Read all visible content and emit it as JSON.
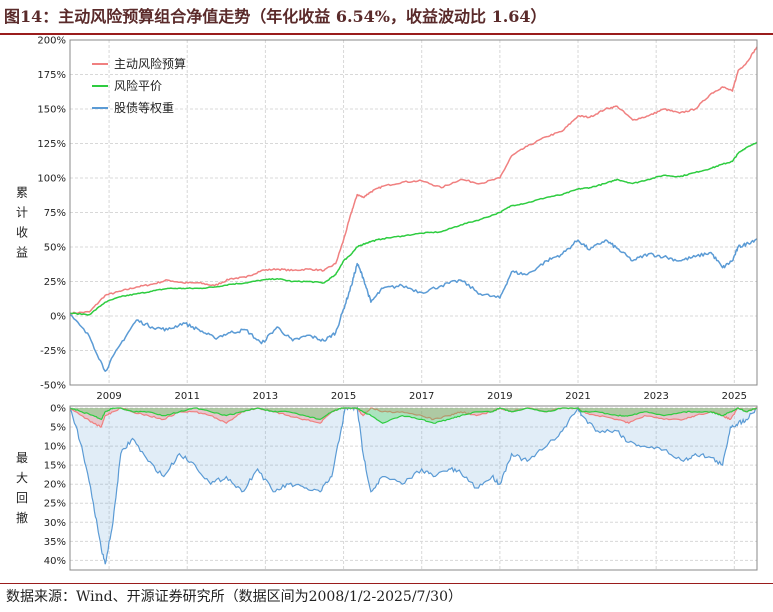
{
  "title": "图14：主动风险预算组合净值走势（年化收益 6.54%，收益波动比 1.64）",
  "source": "数据来源：Wind、开源证券研究所（数据区间为2008/1/2-2025/7/30）",
  "colors": {
    "risk_budget": "#f08080",
    "risk_parity": "#2ecc40",
    "equal_weight": "#5b9bd5",
    "grid": "#d8d8d8",
    "title_rule": "#9a1c1c"
  },
  "chart_data": [
    {
      "type": "line",
      "ylabel": "累计收益",
      "y_tick_labels": [
        "-50%",
        "-25%",
        "0%",
        "25%",
        "50%",
        "75%",
        "100%",
        "125%",
        "150%",
        "175%",
        "200%"
      ],
      "ylim": [
        -0.5,
        2.0
      ],
      "x_tick_labels": [
        "2009",
        "2011",
        "2013",
        "2015",
        "2017",
        "2019",
        "2021",
        "2023",
        "2025"
      ],
      "xlim": [
        2008.0,
        2025.58
      ],
      "grid": true,
      "legend": "top-left",
      "x": [
        2008.0,
        2008.5,
        2008.9,
        2009.3,
        2009.7,
        2010.1,
        2010.5,
        2010.9,
        2011.3,
        2011.7,
        2012.1,
        2012.5,
        2012.9,
        2013.3,
        2013.7,
        2014.1,
        2014.5,
        2014.8,
        2015.0,
        2015.2,
        2015.35,
        2015.5,
        2015.7,
        2016.0,
        2016.5,
        2017.0,
        2017.5,
        2018.0,
        2018.5,
        2019.0,
        2019.3,
        2019.7,
        2020.2,
        2020.6,
        2021.0,
        2021.3,
        2021.7,
        2022.0,
        2022.4,
        2022.8,
        2023.2,
        2023.6,
        2024.0,
        2024.4,
        2024.7,
        2024.95,
        2025.1,
        2025.3,
        2025.58
      ],
      "series": [
        {
          "name": "主动风险预算",
          "color_key": "risk_budget",
          "values": [
            0.02,
            0.03,
            0.15,
            0.18,
            0.21,
            0.23,
            0.26,
            0.24,
            0.24,
            0.22,
            0.27,
            0.28,
            0.33,
            0.34,
            0.33,
            0.34,
            0.33,
            0.38,
            0.55,
            0.75,
            0.88,
            0.86,
            0.9,
            0.94,
            0.97,
            0.98,
            0.93,
            0.99,
            0.96,
            1.0,
            1.16,
            1.23,
            1.3,
            1.34,
            1.45,
            1.44,
            1.5,
            1.52,
            1.42,
            1.45,
            1.5,
            1.47,
            1.5,
            1.61,
            1.66,
            1.63,
            1.78,
            1.83,
            1.95
          ]
        },
        {
          "name": "风险平价",
          "color_key": "risk_parity",
          "values": [
            0.02,
            0.01,
            0.1,
            0.14,
            0.16,
            0.18,
            0.2,
            0.2,
            0.2,
            0.21,
            0.23,
            0.24,
            0.26,
            0.27,
            0.25,
            0.25,
            0.24,
            0.3,
            0.4,
            0.45,
            0.5,
            0.52,
            0.54,
            0.56,
            0.58,
            0.6,
            0.61,
            0.66,
            0.7,
            0.75,
            0.8,
            0.82,
            0.86,
            0.88,
            0.92,
            0.93,
            0.96,
            0.99,
            0.96,
            0.99,
            1.02,
            1.01,
            1.04,
            1.07,
            1.1,
            1.12,
            1.18,
            1.22,
            1.26
          ]
        },
        {
          "name": "股债等权重",
          "color_key": "equal_weight",
          "values": [
            0.01,
            -0.15,
            -0.4,
            -0.2,
            -0.03,
            -0.08,
            -0.1,
            -0.05,
            -0.1,
            -0.16,
            -0.12,
            -0.1,
            -0.2,
            -0.08,
            -0.18,
            -0.14,
            -0.18,
            -0.12,
            0.05,
            0.22,
            0.38,
            0.28,
            0.1,
            0.2,
            0.22,
            0.17,
            0.22,
            0.26,
            0.16,
            0.13,
            0.32,
            0.3,
            0.4,
            0.45,
            0.55,
            0.48,
            0.55,
            0.49,
            0.4,
            0.45,
            0.43,
            0.4,
            0.43,
            0.46,
            0.35,
            0.4,
            0.5,
            0.52,
            0.56
          ]
        }
      ]
    },
    {
      "type": "area",
      "ylabel": "最大回撤",
      "y_tick_labels": [
        "0%",
        "5%",
        "10%",
        "15%",
        "20%",
        "25%",
        "30%",
        "35%",
        "40%"
      ],
      "ylim": [
        0,
        0.42
      ],
      "x": [
        2008.0,
        2008.3,
        2008.6,
        2008.8,
        2008.9,
        2009.1,
        2009.3,
        2009.6,
        2010.0,
        2010.4,
        2010.8,
        2011.2,
        2011.6,
        2012.0,
        2012.4,
        2012.8,
        2013.2,
        2013.6,
        2014.0,
        2014.4,
        2014.7,
        2014.95,
        2015.05,
        2015.25,
        2015.35,
        2015.5,
        2015.7,
        2016.0,
        2016.5,
        2017.0,
        2017.3,
        2017.7,
        2018.0,
        2018.4,
        2018.8,
        2019.0,
        2019.3,
        2019.7,
        2020.2,
        2020.6,
        2021.0,
        2021.1,
        2021.5,
        2022.0,
        2022.3,
        2022.7,
        2023.2,
        2023.7,
        2024.0,
        2024.4,
        2024.7,
        2024.9,
        2025.1,
        2025.3,
        2025.58
      ],
      "series": [
        {
          "name": "主动风险预算",
          "color_key": "risk_budget",
          "values": [
            0.0,
            0.02,
            0.04,
            0.05,
            0.02,
            0.01,
            0.0,
            0.01,
            0.02,
            0.03,
            0.01,
            0.01,
            0.02,
            0.04,
            0.01,
            0.0,
            0.01,
            0.02,
            0.03,
            0.04,
            0.01,
            0.0,
            0.0,
            0.0,
            0.0,
            0.02,
            0.0,
            0.01,
            0.01,
            0.02,
            0.03,
            0.02,
            0.01,
            0.02,
            0.01,
            0.0,
            0.01,
            0.0,
            0.01,
            0.0,
            0.0,
            0.01,
            0.02,
            0.03,
            0.04,
            0.02,
            0.03,
            0.03,
            0.02,
            0.01,
            0.02,
            0.03,
            0.0,
            0.01,
            0.0
          ]
        },
        {
          "name": "风险平价",
          "color_key": "risk_parity",
          "values": [
            0.0,
            0.01,
            0.02,
            0.03,
            0.01,
            0.0,
            0.0,
            0.01,
            0.01,
            0.02,
            0.01,
            0.0,
            0.01,
            0.02,
            0.01,
            0.0,
            0.01,
            0.01,
            0.02,
            0.03,
            0.01,
            0.0,
            0.0,
            0.0,
            0.0,
            0.01,
            0.02,
            0.04,
            0.02,
            0.03,
            0.04,
            0.03,
            0.02,
            0.01,
            0.01,
            0.0,
            0.01,
            0.0,
            0.01,
            0.0,
            0.0,
            0.01,
            0.01,
            0.02,
            0.02,
            0.01,
            0.02,
            0.01,
            0.01,
            0.01,
            0.02,
            0.01,
            0.0,
            0.01,
            0.0
          ]
        },
        {
          "name": "股债等权重",
          "color_key": "equal_weight",
          "values": [
            0.0,
            0.1,
            0.25,
            0.37,
            0.41,
            0.3,
            0.12,
            0.08,
            0.14,
            0.18,
            0.12,
            0.15,
            0.2,
            0.18,
            0.22,
            0.16,
            0.22,
            0.2,
            0.21,
            0.22,
            0.18,
            0.05,
            0.0,
            0.0,
            0.0,
            0.12,
            0.22,
            0.18,
            0.2,
            0.16,
            0.18,
            0.16,
            0.17,
            0.21,
            0.18,
            0.2,
            0.12,
            0.14,
            0.1,
            0.06,
            0.0,
            0.02,
            0.06,
            0.06,
            0.09,
            0.1,
            0.11,
            0.14,
            0.12,
            0.13,
            0.15,
            0.05,
            0.04,
            0.03,
            0.0
          ]
        }
      ]
    }
  ]
}
